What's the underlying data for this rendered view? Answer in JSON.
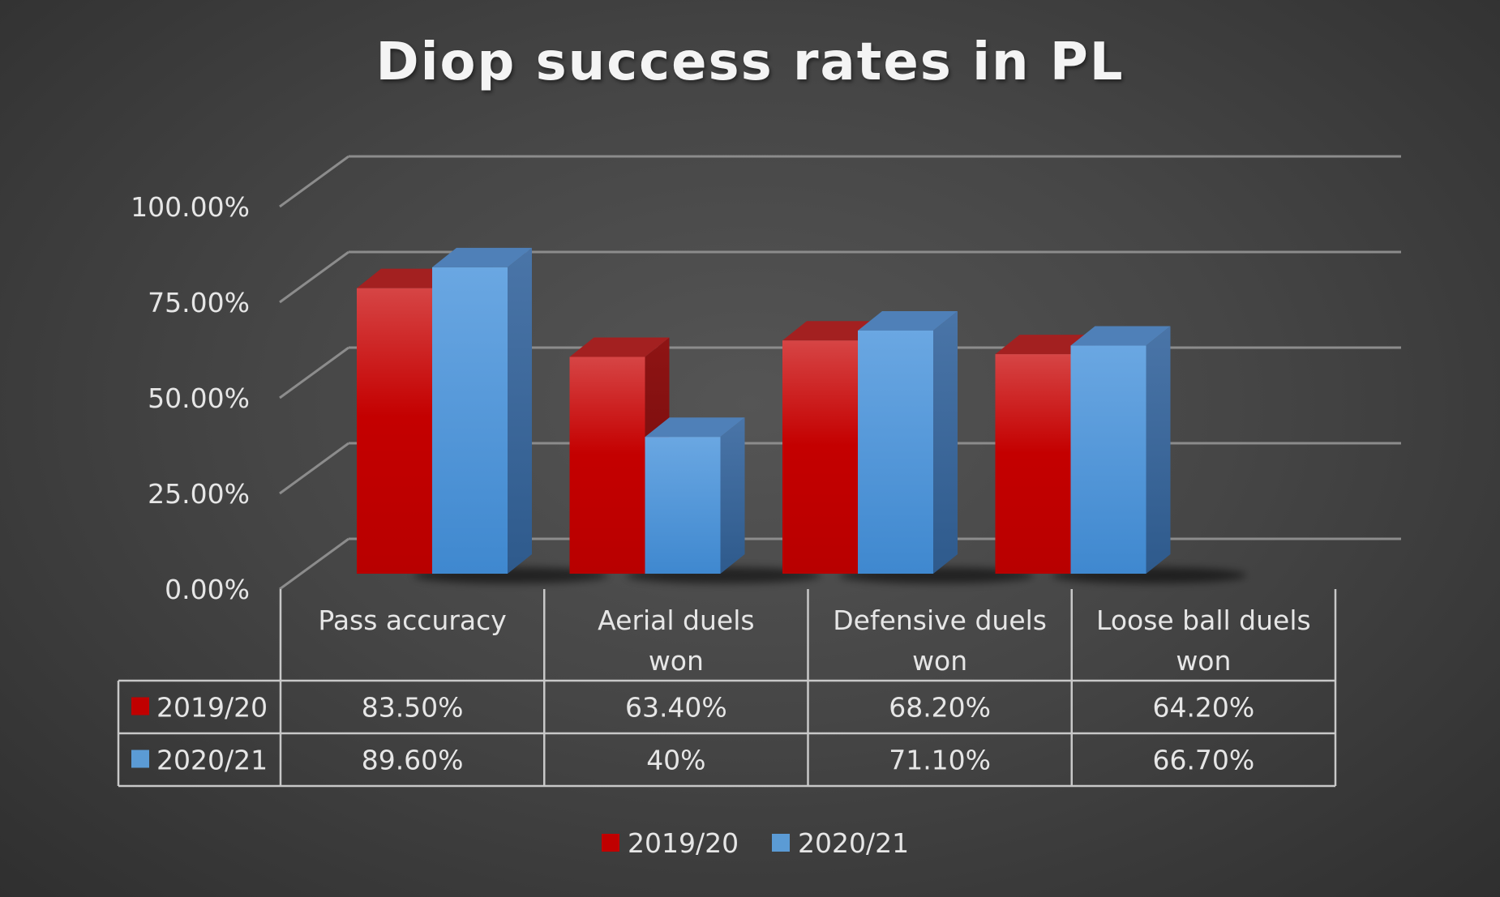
{
  "chart_data": {
    "type": "bar",
    "title": "Diop success rates in PL",
    "categories": [
      [
        "Pass accuracy"
      ],
      [
        "Aerial duels",
        "won"
      ],
      [
        "Defensive duels",
        "won"
      ],
      [
        "Loose ball duels",
        "won"
      ]
    ],
    "series": [
      {
        "name": "2019/20",
        "color": "#c00000",
        "values": [
          83.5,
          63.4,
          68.2,
          64.2
        ],
        "labels": [
          "83.50%",
          "63.40%",
          "68.20%",
          "64.20%"
        ]
      },
      {
        "name": "2020/21",
        "color": "#5b9bd5",
        "values": [
          89.6,
          40,
          71.1,
          66.7
        ],
        "labels": [
          "89.60%",
          "40%",
          "71.10%",
          "66.70%"
        ]
      }
    ],
    "yticks": [
      "0.00%",
      "25.00%",
      "50.00%",
      "75.00%",
      "100.00%"
    ],
    "ylim": [
      0,
      100
    ],
    "grid": true,
    "legend": "bottom",
    "data_table": true
  }
}
